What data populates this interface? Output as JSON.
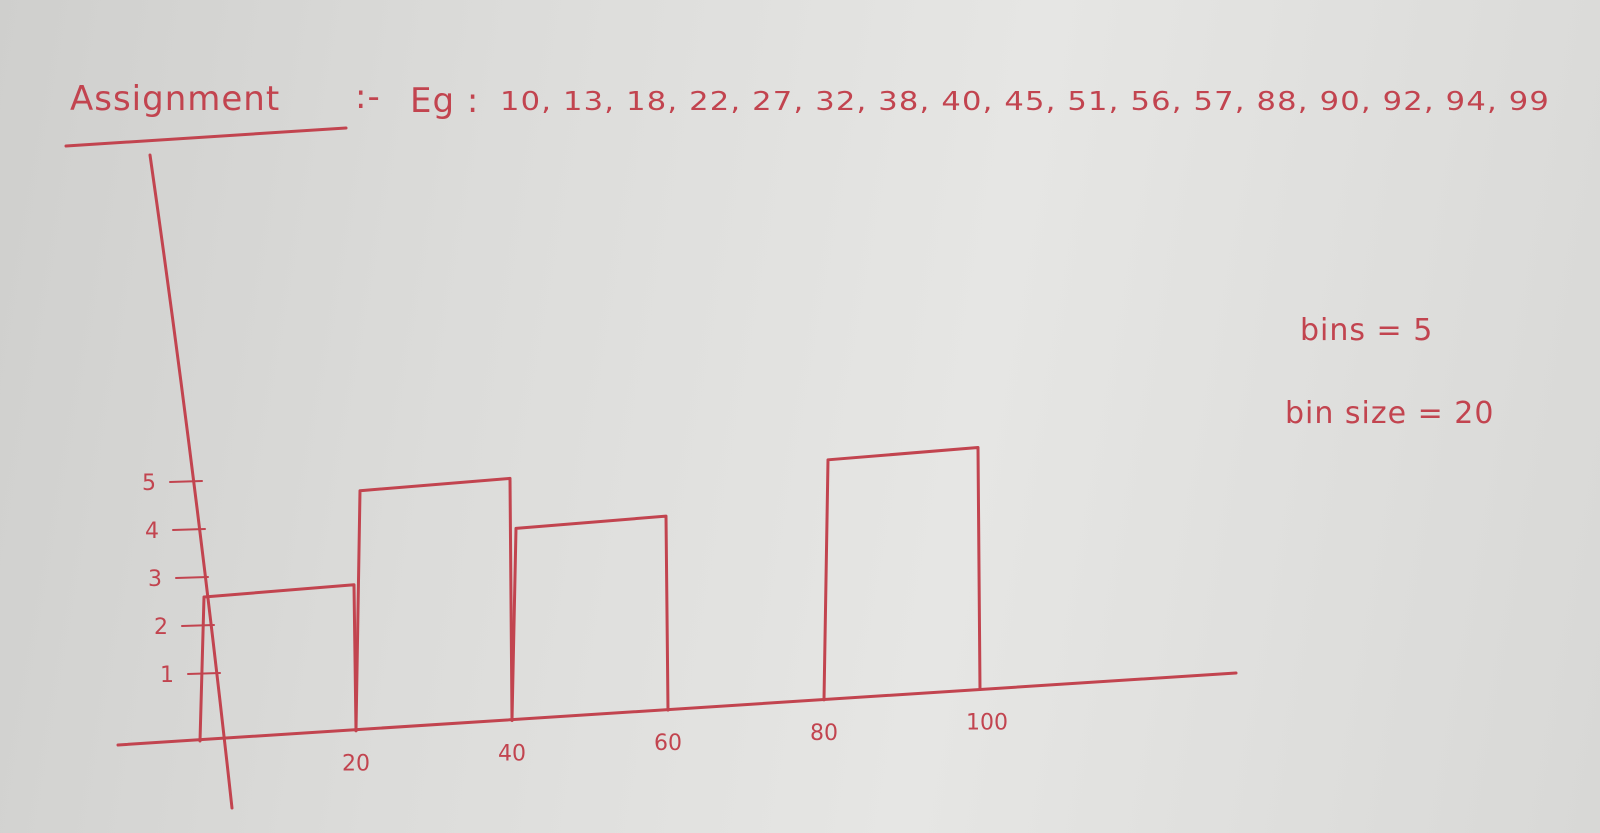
{
  "header": {
    "heading": "Assignment",
    "separator": ":-",
    "example_prefix": "Eg :",
    "example_values": "10, 13, 18, 22, 27, 32, 38, 40, 45, 51, 56, 57, 88, 90, 92, 94, 99"
  },
  "notes": {
    "bins": "bins = 5",
    "bin_size": "bin size = 20"
  },
  "chart_data": {
    "type": "bar",
    "title": "",
    "xlabel": "",
    "ylabel": "",
    "bins": [
      {
        "start": 0,
        "end": 20,
        "count": 3
      },
      {
        "start": 20,
        "end": 40,
        "count": 5
      },
      {
        "start": 40,
        "end": 60,
        "count": 4
      },
      {
        "start": 60,
        "end": 80,
        "count": 0
      },
      {
        "start": 80,
        "end": 100,
        "count": 5
      }
    ],
    "x_ticks": [
      "20",
      "40",
      "60",
      "80",
      "100"
    ],
    "y_ticks": [
      "1",
      "2",
      "3",
      "4",
      "5"
    ],
    "xlim": [
      0,
      100
    ],
    "ylim": [
      0,
      5
    ],
    "grid": false,
    "colors": {
      "ink": "#c2444f",
      "paper": "#e2e2e0"
    }
  }
}
